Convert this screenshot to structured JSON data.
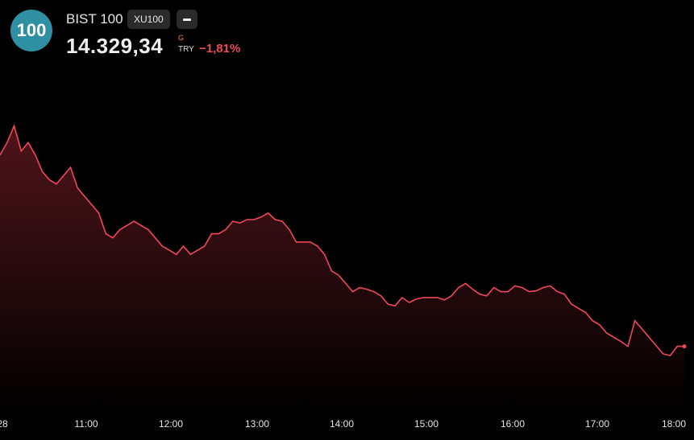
{
  "header": {
    "logo_text": "100",
    "name": "BIST 100",
    "ticker": "XU100",
    "minus_icon": "minus-icon",
    "price": "14.329,34",
    "g_label": "G",
    "currency": "TRY",
    "change": "−1,81%"
  },
  "colors": {
    "line": "#f0475a",
    "background": "#000000",
    "logo": "#2f8fa3",
    "change": "#f04a58"
  },
  "chart_data": {
    "type": "area",
    "x_tick_labels": [
      "28",
      "11:00",
      "12:00",
      "13:00",
      "14:00",
      "15:00",
      "16:00",
      "17:00",
      "18:00"
    ],
    "x": [
      "10:00",
      "10:05",
      "10:10",
      "10:15",
      "10:20",
      "10:25",
      "10:30",
      "10:35",
      "10:40",
      "10:45",
      "10:50",
      "10:55",
      "11:00",
      "11:05",
      "11:10",
      "11:15",
      "11:20",
      "11:25",
      "11:30",
      "11:35",
      "11:40",
      "11:45",
      "11:50",
      "11:55",
      "12:00",
      "12:05",
      "12:10",
      "12:15",
      "12:20",
      "12:25",
      "12:30",
      "12:35",
      "12:40",
      "12:45",
      "12:50",
      "12:55",
      "13:00",
      "13:05",
      "13:10",
      "13:15",
      "13:20",
      "13:25",
      "13:30",
      "13:35",
      "13:40",
      "13:45",
      "13:50",
      "13:55",
      "14:00",
      "14:05",
      "14:10",
      "14:15",
      "14:20",
      "14:25",
      "14:30",
      "14:35",
      "14:40",
      "14:45",
      "14:50",
      "14:55",
      "15:00",
      "15:05",
      "15:10",
      "15:15",
      "15:20",
      "15:25",
      "15:30",
      "15:35",
      "15:40",
      "15:45",
      "15:50",
      "15:55",
      "16:00",
      "16:05",
      "16:10",
      "16:15",
      "16:20",
      "16:25",
      "16:30",
      "16:35",
      "16:40",
      "16:45",
      "16:50",
      "16:55",
      "17:00",
      "17:05",
      "17:10",
      "17:15",
      "17:20",
      "17:25",
      "17:30",
      "17:35",
      "17:40",
      "17:45",
      "17:50",
      "17:55",
      "18:00",
      "18:05"
    ],
    "y": [
      14560,
      14575,
      14595,
      14565,
      14575,
      14560,
      14540,
      14530,
      14525,
      14535,
      14545,
      14520,
      14510,
      14500,
      14490,
      14465,
      14460,
      14470,
      14475,
      14480,
      14475,
      14470,
      14460,
      14450,
      14445,
      14440,
      14450,
      14440,
      14445,
      14450,
      14465,
      14465,
      14470,
      14480,
      14478,
      14482,
      14482,
      14485,
      14490,
      14482,
      14480,
      14470,
      14455,
      14455,
      14455,
      14450,
      14440,
      14420,
      14415,
      14405,
      14395,
      14400,
      14398,
      14395,
      14390,
      14380,
      14378,
      14388,
      14382,
      14386,
      14388,
      14388,
      14388,
      14385,
      14390,
      14400,
      14405,
      14398,
      14392,
      14390,
      14400,
      14395,
      14395,
      14402,
      14400,
      14395,
      14396,
      14400,
      14402,
      14395,
      14392,
      14380,
      14375,
      14370,
      14360,
      14355,
      14345,
      14340,
      14335,
      14329,
      14360,
      14350,
      14340,
      14330,
      14320,
      14318,
      14329,
      14329
    ],
    "xlim": [
      "10:00",
      "18:05"
    ],
    "ylim": [
      14250,
      14650
    ],
    "grid": false,
    "legend": "none"
  }
}
